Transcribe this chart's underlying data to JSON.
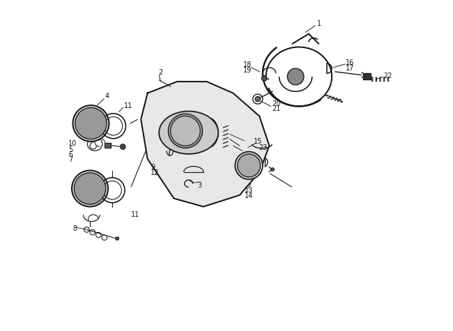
{
  "bg_color": "#ffffff",
  "line_color": "#1a1a1a",
  "label_color": "#111111",
  "fig_width": 6.5,
  "fig_height": 4.75,
  "dpi": 100
}
